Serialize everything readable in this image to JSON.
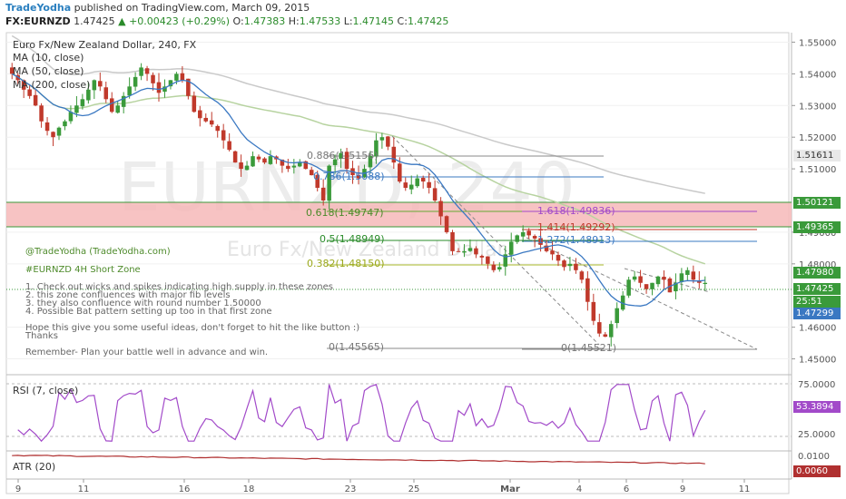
{
  "header": {
    "brand": "TradeYodha",
    "published": "published on TradingView.com, March 09, 2015",
    "symbol": "FX:EURNZD",
    "last": "1.47425",
    "change": "+0.00423 (+0.29%)",
    "o_label": "O:",
    "o": "1.47383",
    "h_label": "H:",
    "h": "1.47533",
    "l_label": "L:",
    "l": "1.47145",
    "c_label": "C:",
    "c": "1.47425"
  },
  "legend": {
    "title": "Euro Fx/New Zealand Dollar, 240, FX",
    "ma10": "MA (10, close)",
    "ma50": "MA (50, close)",
    "ma200": "MA (200, close)"
  },
  "watermark": {
    "big": "EURNZD, 240",
    "small": "Euro Fx/New Zealand Dollar"
  },
  "annotations": {
    "line1": "@TradeYodha (TradeYodha.com)",
    "line2": "#EURNZD 4H Short Zone",
    "line3": "1. Check out wicks and spikes indicating high supply in these zones",
    "line4": "2. this zone confluences with major fib levels",
    "line5": "3. they also confluence with round number 1.50000",
    "line6": "4. Possible Bat pattern setting up too in that first zone",
    "line7": "Hope this give you some useful ideas, don't forget to hit the like button :)",
    "line8": "Thanks",
    "line9": "Remember- Plan your battle well in advance and win."
  },
  "fib": {
    "f0886": "0.886(1.5156)",
    "f0786": "0.786(1.5088)",
    "f0618": "0.618(1.49747)",
    "f05": "0.5(1.48949)",
    "f0382": "0.382(1.48150)",
    "f0": "0(1.45565)",
    "f1618": "1.618(1.49836)",
    "f1414": "1.414(1.49292)",
    "f1272": "1.272(1.48913)",
    "f0b": "0(1.45521)"
  },
  "price_tags": {
    "t1": "1.51611",
    "t2": "1.50121",
    "t3": "1.49365",
    "t4": "1.47980",
    "t5": "1.47425",
    "t6": "25:51",
    "t7": "1.47299"
  },
  "colors": {
    "up": "#3a9a3a",
    "down": "#c0392b",
    "ma10": "#3a78c2",
    "ma50": "#b7d3a0",
    "ma200": "#c9c9c9",
    "rsi": "#a24ac9",
    "zone": "#f6b8b8"
  },
  "rsi": {
    "label": "RSI (7, close)",
    "value": "53.3894"
  },
  "atr": {
    "label": "ATR (20)",
    "value": "0.0060"
  },
  "chart_data": [
    {
      "type": "candlestick",
      "title": "Euro Fx/New Zealand Dollar, 240, FX",
      "x_ticks": [
        "9",
        "11",
        "16",
        "18",
        "23",
        "25",
        "Mar",
        "4",
        "6",
        "9",
        "11"
      ],
      "y_ticks": [
        "1.55000",
        "1.54000",
        "1.53000",
        "1.52000",
        "1.51000",
        "1.49000",
        "1.48000",
        "1.46000",
        "1.45000"
      ],
      "ylim": [
        1.445,
        1.553
      ],
      "close": [
        1.54,
        1.538,
        1.535,
        1.533,
        1.53,
        1.525,
        1.522,
        1.52,
        1.523,
        1.525,
        1.528,
        1.53,
        1.532,
        1.535,
        1.538,
        1.536,
        1.532,
        1.528,
        1.53,
        1.533,
        1.536,
        1.539,
        1.542,
        1.54,
        1.537,
        1.534,
        1.536,
        1.538,
        1.54,
        1.538,
        1.533,
        1.528,
        1.526,
        1.525,
        1.524,
        1.522,
        1.519,
        1.516,
        1.512,
        1.51,
        1.511,
        1.514,
        1.513,
        1.512,
        1.514,
        1.513,
        1.511,
        1.51,
        1.511,
        1.512,
        1.51,
        1.508,
        1.504,
        1.5,
        1.511,
        1.513,
        1.515,
        1.51,
        1.508,
        1.507,
        1.51,
        1.514,
        1.519,
        1.52,
        1.517,
        1.512,
        1.506,
        1.504,
        1.505,
        1.507,
        1.506,
        1.504,
        1.5,
        1.495,
        1.49,
        1.484,
        1.484,
        1.484,
        1.485,
        1.483,
        1.482,
        1.48,
        1.478,
        1.479,
        1.483,
        1.487,
        1.489,
        1.49,
        1.489,
        1.488,
        1.486,
        1.484,
        1.483,
        1.481,
        1.479,
        1.48,
        1.478,
        1.475,
        1.468,
        1.462,
        1.458,
        1.457,
        1.461,
        1.466,
        1.47,
        1.475,
        1.476,
        1.474,
        1.472,
        1.474,
        1.476,
        1.475,
        1.471,
        1.474,
        1.477,
        1.478,
        1.475,
        1.474,
        1.474
      ],
      "rsi_value": 53.3894,
      "atr_value": 0.006
    }
  ]
}
